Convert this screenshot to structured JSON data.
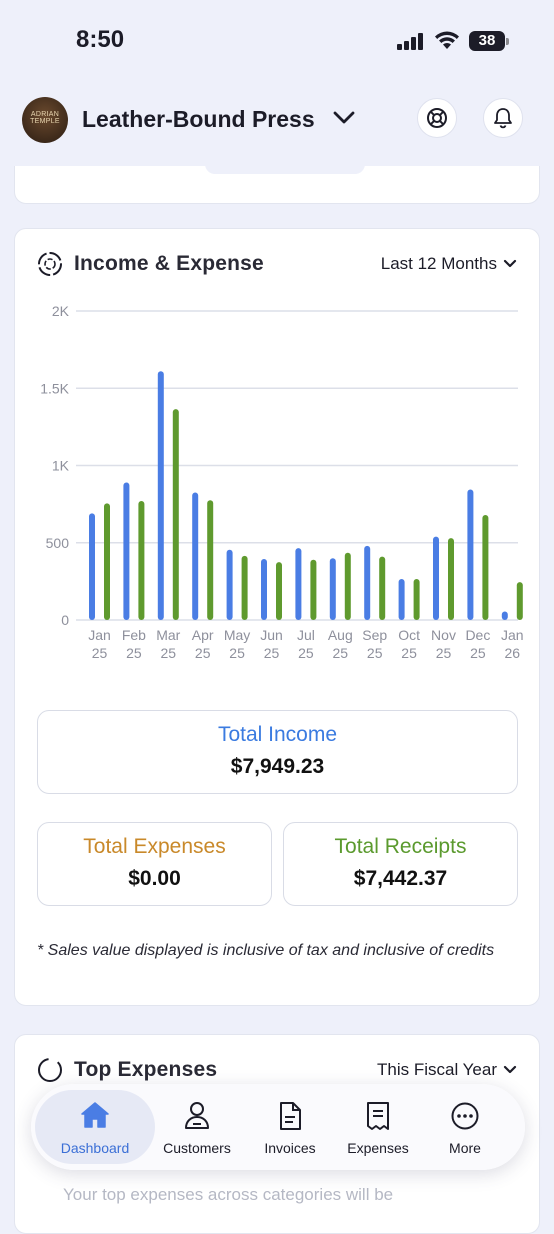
{
  "status": {
    "time": "8:50",
    "battery": "38"
  },
  "header": {
    "company": "Leather-Bound Press",
    "avatar_text": "ADRIAN TEMPLE"
  },
  "income_card": {
    "title": "Income & Expense",
    "period": "Last 12 Months",
    "total_income_label": "Total Income",
    "total_income": "$7,949.23",
    "total_expenses_label": "Total Expenses",
    "total_expenses": "$0.00",
    "total_receipts_label": "Total Receipts",
    "total_receipts": "$7,442.37",
    "note": "* Sales value displayed is inclusive of tax and inclusive of credits"
  },
  "chart_data": {
    "type": "bar",
    "categories": [
      "Jan 25",
      "Feb 25",
      "Mar 25",
      "Apr 25",
      "May 25",
      "Jun 25",
      "Jul 25",
      "Aug 25",
      "Sep 25",
      "Oct 25",
      "Nov 25",
      "Dec 25",
      "Jan 26"
    ],
    "x_tick_lines": [
      [
        "Jan",
        "25"
      ],
      [
        "Feb",
        "25"
      ],
      [
        "Mar",
        "25"
      ],
      [
        "Apr",
        "25"
      ],
      [
        "May",
        "25"
      ],
      [
        "Jun",
        "25"
      ],
      [
        "Jul",
        "25"
      ],
      [
        "Aug",
        "25"
      ],
      [
        "Sep",
        "25"
      ],
      [
        "Oct",
        "25"
      ],
      [
        "Nov",
        "25"
      ],
      [
        "Dec",
        "25"
      ],
      [
        "Jan",
        "26"
      ]
    ],
    "series": [
      {
        "color": "#4a7de4",
        "values": [
          690,
          890,
          1610,
          825,
          455,
          395,
          465,
          400,
          480,
          265,
          540,
          845,
          55
        ]
      },
      {
        "color": "#5f9a2e",
        "values": [
          755,
          770,
          1365,
          775,
          415,
          375,
          390,
          435,
          410,
          265,
          530,
          680,
          245
        ]
      }
    ],
    "y_ticks": [
      "0",
      "500",
      "1K",
      "1.5K",
      "2K"
    ],
    "ylim": [
      0,
      2000
    ],
    "grid": true
  },
  "top_expenses": {
    "title": "Top Expenses",
    "period": "This Fiscal Year",
    "hint": "Your top expenses across categories will be"
  },
  "tabbar": {
    "tabs": [
      {
        "label": "Dashboard"
      },
      {
        "label": "Customers"
      },
      {
        "label": "Invoices"
      },
      {
        "label": "Expenses"
      },
      {
        "label": "More"
      }
    ]
  },
  "colors": {
    "income": "#3b7be0",
    "expenses": "#c9892a",
    "receipts": "#5b9a2e",
    "accent": "#4a7de4"
  }
}
